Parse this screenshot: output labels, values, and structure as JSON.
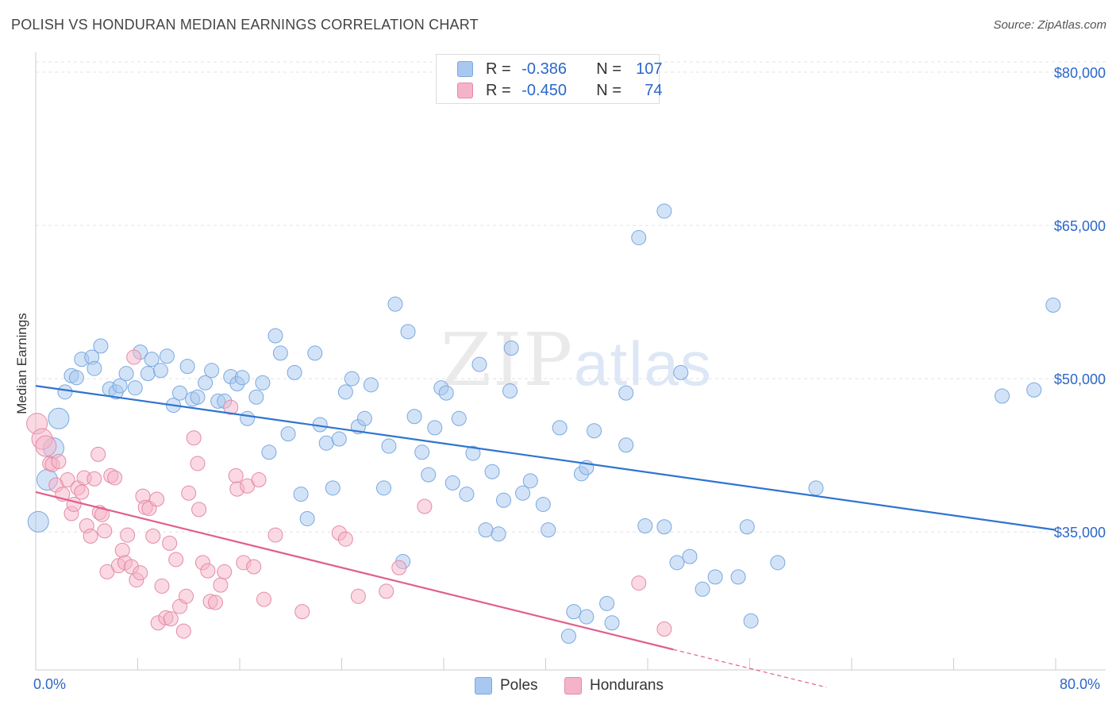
{
  "header": {
    "title": "POLISH VS HONDURAN MEDIAN EARNINGS CORRELATION CHART",
    "source": "Source: ZipAtlas.com"
  },
  "legend_top": [
    {
      "r_label": "R = ",
      "r_value": "-0.386",
      "n_label": "N = ",
      "n_value": "107",
      "color": "#a8c8f0"
    },
    {
      "r_label": "R = ",
      "r_value": "-0.450",
      "n_label": "N = ",
      "n_value": "74",
      "color": "#f5b3c8"
    }
  ],
  "legend_bottom": [
    {
      "label": "Poles",
      "color": "#a8c8f0"
    },
    {
      "label": "Hondurans",
      "color": "#f5b3c8"
    }
  ],
  "watermark": {
    "zip": "ZIP",
    "atlas": "atlas"
  },
  "chart_data": {
    "type": "scatter",
    "title": "POLISH VS HONDURAN MEDIAN EARNINGS CORRELATION CHART",
    "xlabel": "",
    "ylabel": "Median Earnings",
    "xlim": [
      0,
      80
    ],
    "ylim": [
      21500,
      81000
    ],
    "x_tick_labels": [
      "0.0%",
      "80.0%"
    ],
    "y_ticks": [
      35000,
      50000,
      65000,
      80000
    ],
    "y_tick_labels": [
      "$35,000",
      "$50,000",
      "$65,000",
      "$80,000"
    ],
    "grid": true,
    "series": [
      {
        "name": "Poles",
        "color": "#a8c8f0",
        "stroke": "#7aa8e0",
        "trend": {
          "x": [
            0,
            80
          ],
          "y": [
            49300,
            35200
          ],
          "color": "#2f74d0"
        },
        "points": [
          [
            0.2,
            36000
          ],
          [
            0.9,
            40100
          ],
          [
            1.4,
            43200
          ],
          [
            1.8,
            46100
          ],
          [
            2.3,
            48700
          ],
          [
            2.8,
            50300
          ],
          [
            3.2,
            50100
          ],
          [
            3.6,
            51900
          ],
          [
            4.4,
            52100
          ],
          [
            4.6,
            51000
          ],
          [
            5.1,
            53200
          ],
          [
            5.8,
            49000
          ],
          [
            6.3,
            48700
          ],
          [
            6.6,
            49300
          ],
          [
            7.1,
            50500
          ],
          [
            7.8,
            49100
          ],
          [
            8.2,
            52600
          ],
          [
            8.8,
            50500
          ],
          [
            9.1,
            51900
          ],
          [
            9.8,
            50800
          ],
          [
            10.3,
            52200
          ],
          [
            10.8,
            47400
          ],
          [
            11.3,
            48600
          ],
          [
            11.9,
            51200
          ],
          [
            12.3,
            48000
          ],
          [
            12.7,
            48200
          ],
          [
            13.3,
            49600
          ],
          [
            13.8,
            50800
          ],
          [
            14.3,
            47800
          ],
          [
            14.8,
            47800
          ],
          [
            15.3,
            50200
          ],
          [
            15.8,
            49500
          ],
          [
            16.2,
            50100
          ],
          [
            16.6,
            46100
          ],
          [
            17.3,
            48200
          ],
          [
            17.8,
            49600
          ],
          [
            18.3,
            42800
          ],
          [
            18.8,
            54200
          ],
          [
            19.2,
            52500
          ],
          [
            19.8,
            44600
          ],
          [
            20.3,
            50600
          ],
          [
            20.8,
            38700
          ],
          [
            21.3,
            36300
          ],
          [
            21.9,
            52500
          ],
          [
            22.3,
            45500
          ],
          [
            22.8,
            43700
          ],
          [
            23.3,
            39300
          ],
          [
            23.8,
            44100
          ],
          [
            24.3,
            48700
          ],
          [
            24.8,
            50000
          ],
          [
            25.3,
            45300
          ],
          [
            25.8,
            46100
          ],
          [
            26.3,
            49400
          ],
          [
            27.3,
            39300
          ],
          [
            27.7,
            43400
          ],
          [
            28.2,
            57300
          ],
          [
            28.8,
            32100
          ],
          [
            29.2,
            54600
          ],
          [
            29.7,
            46300
          ],
          [
            30.3,
            42800
          ],
          [
            30.8,
            40600
          ],
          [
            31.3,
            45200
          ],
          [
            31.8,
            49100
          ],
          [
            32.2,
            48600
          ],
          [
            32.7,
            39800
          ],
          [
            33.2,
            46100
          ],
          [
            33.8,
            38700
          ],
          [
            34.3,
            42700
          ],
          [
            34.8,
            51400
          ],
          [
            35.3,
            35200
          ],
          [
            35.8,
            40900
          ],
          [
            36.3,
            34800
          ],
          [
            36.7,
            38100
          ],
          [
            37.3,
            53000
          ],
          [
            37.2,
            48800
          ],
          [
            38.2,
            38800
          ],
          [
            38.8,
            40000
          ],
          [
            39.8,
            37700
          ],
          [
            40.2,
            35200
          ],
          [
            41.1,
            45200
          ],
          [
            42.2,
            27200
          ],
          [
            41.8,
            24800
          ],
          [
            42.8,
            40700
          ],
          [
            43.2,
            41300
          ],
          [
            43.2,
            26700
          ],
          [
            43.8,
            44900
          ],
          [
            44.8,
            28000
          ],
          [
            45.2,
            26100
          ],
          [
            46.3,
            43500
          ],
          [
            46.3,
            48600
          ],
          [
            47.3,
            63800
          ],
          [
            47.8,
            35600
          ],
          [
            49.3,
            66400
          ],
          [
            49.3,
            35500
          ],
          [
            50.3,
            32000
          ],
          [
            50.6,
            50600
          ],
          [
            51.3,
            32600
          ],
          [
            52.3,
            29400
          ],
          [
            53.3,
            30600
          ],
          [
            55.1,
            30600
          ],
          [
            55.8,
            35500
          ],
          [
            56.1,
            26300
          ],
          [
            58.2,
            32000
          ],
          [
            61.2,
            39300
          ],
          [
            75.8,
            48300
          ],
          [
            78.3,
            48900
          ],
          [
            79.8,
            57200
          ]
        ],
        "large_points": [
          [
            0.2,
            36000
          ],
          [
            0.9,
            40100
          ],
          [
            1.4,
            43200
          ],
          [
            1.8,
            46100
          ]
        ]
      },
      {
        "name": "Hondurans",
        "color": "#f5b3c8",
        "stroke": "#e48aa8",
        "trend": {
          "x": [
            0,
            50
          ],
          "y": [
            38900,
            23500
          ],
          "dash_to": [
            62,
            19800
          ],
          "color": "#e0608c"
        },
        "points": [
          [
            0.1,
            45600
          ],
          [
            0.5,
            44100
          ],
          [
            0.8,
            43400
          ],
          [
            1.1,
            41700
          ],
          [
            1.3,
            41600
          ],
          [
            1.6,
            39600
          ],
          [
            1.8,
            41900
          ],
          [
            2.1,
            38700
          ],
          [
            2.5,
            40100
          ],
          [
            2.8,
            36800
          ],
          [
            3.0,
            37700
          ],
          [
            3.3,
            39300
          ],
          [
            3.6,
            38900
          ],
          [
            3.8,
            40300
          ],
          [
            4.0,
            35600
          ],
          [
            4.3,
            34600
          ],
          [
            4.6,
            40200
          ],
          [
            4.9,
            42600
          ],
          [
            5.0,
            36900
          ],
          [
            5.2,
            36700
          ],
          [
            5.4,
            35100
          ],
          [
            5.6,
            31100
          ],
          [
            5.9,
            40500
          ],
          [
            6.2,
            40300
          ],
          [
            6.5,
            31700
          ],
          [
            6.8,
            33200
          ],
          [
            7.0,
            32000
          ],
          [
            7.2,
            34700
          ],
          [
            7.5,
            31600
          ],
          [
            7.7,
            52100
          ],
          [
            7.9,
            30300
          ],
          [
            8.2,
            31000
          ],
          [
            8.4,
            38500
          ],
          [
            8.6,
            37400
          ],
          [
            8.9,
            37300
          ],
          [
            9.2,
            34600
          ],
          [
            9.5,
            38200
          ],
          [
            9.6,
            26100
          ],
          [
            9.9,
            29700
          ],
          [
            10.2,
            26600
          ],
          [
            10.5,
            33900
          ],
          [
            10.6,
            26500
          ],
          [
            11.0,
            32300
          ],
          [
            11.3,
            27700
          ],
          [
            11.6,
            25300
          ],
          [
            11.8,
            28700
          ],
          [
            12.0,
            38800
          ],
          [
            12.4,
            44200
          ],
          [
            12.7,
            41700
          ],
          [
            12.8,
            37200
          ],
          [
            13.1,
            32000
          ],
          [
            13.5,
            31200
          ],
          [
            13.7,
            28200
          ],
          [
            14.1,
            28100
          ],
          [
            14.5,
            29800
          ],
          [
            14.8,
            31100
          ],
          [
            15.3,
            47200
          ],
          [
            15.7,
            40500
          ],
          [
            15.8,
            39200
          ],
          [
            16.3,
            32000
          ],
          [
            16.6,
            39500
          ],
          [
            17.1,
            31600
          ],
          [
            17.5,
            40100
          ],
          [
            17.9,
            28400
          ],
          [
            18.8,
            34700
          ],
          [
            20.9,
            27200
          ],
          [
            23.8,
            34900
          ],
          [
            24.3,
            34300
          ],
          [
            25.3,
            28700
          ],
          [
            27.5,
            29200
          ],
          [
            28.5,
            31500
          ],
          [
            30.5,
            37500
          ],
          [
            49.3,
            25500
          ],
          [
            47.3,
            30000
          ]
        ],
        "large_points": [
          [
            0.1,
            45600
          ],
          [
            0.5,
            44100
          ],
          [
            0.8,
            43400
          ]
        ]
      }
    ]
  }
}
